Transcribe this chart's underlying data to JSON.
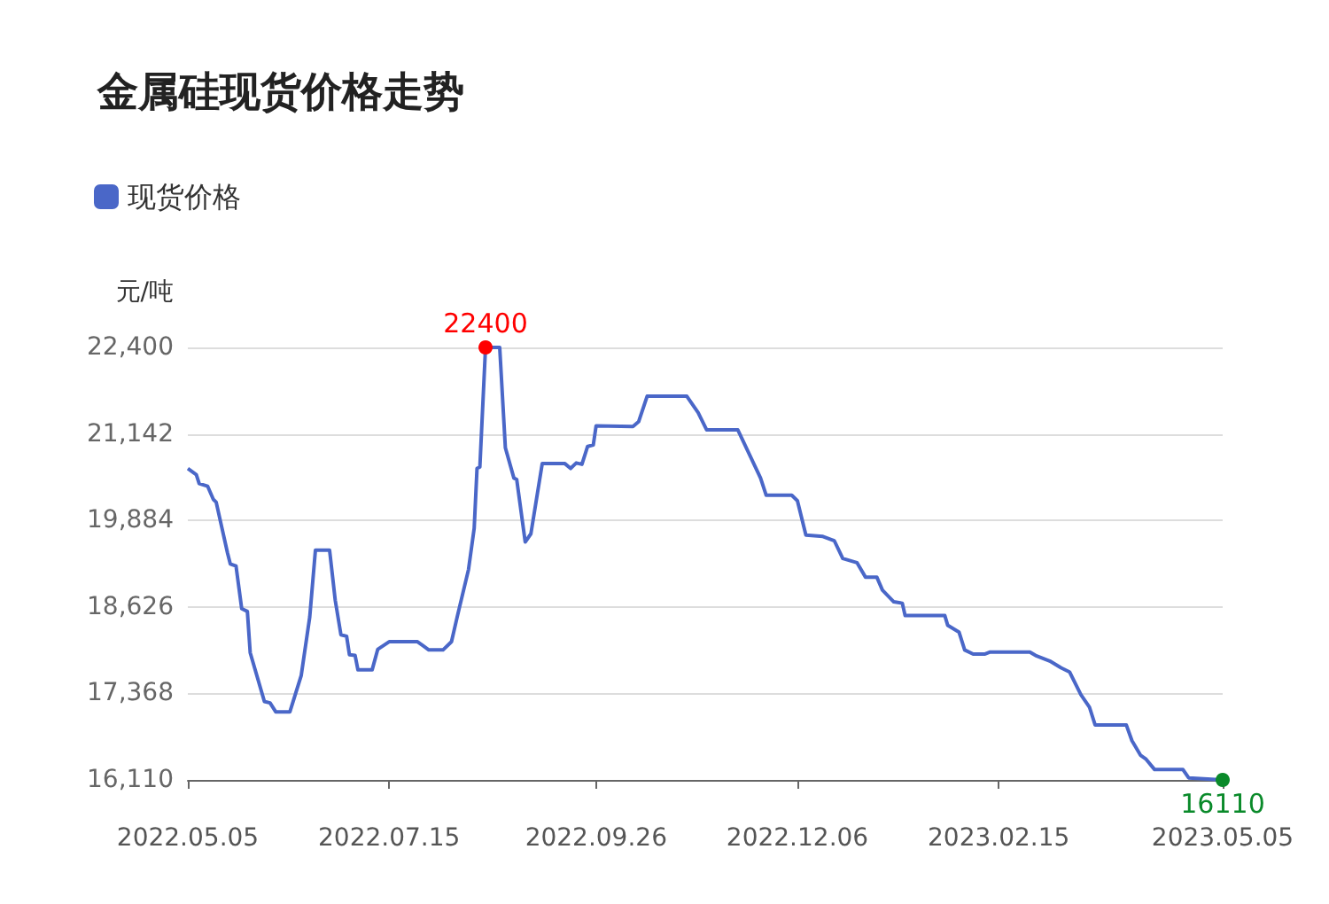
{
  "chart_data": {
    "type": "line",
    "title": "金属硅现货价格走势",
    "ylabel": "元/吨",
    "legend": "top left",
    "grid": "y",
    "marker": "none",
    "line_style": "solid",
    "xlim": [
      "2022-05-05",
      "2023-05-05"
    ],
    "xticks": [
      {
        "value": "2022-05-05",
        "label": "2022.05.05"
      },
      {
        "value": "2022-07-15",
        "label": "2022.07.15"
      },
      {
        "value": "2022-09-26",
        "label": "2022.09.26"
      },
      {
        "value": "2022-12-06",
        "label": "2022.12.06"
      },
      {
        "value": "2023-02-15",
        "label": "2023.02.15"
      },
      {
        "value": "2023-05-05",
        "label": "2023.05.05"
      }
    ],
    "ylim": [
      16110,
      22400
    ],
    "yticks": [
      {
        "value": 16110,
        "label": "16,110"
      },
      {
        "value": 17368,
        "label": "17,368"
      },
      {
        "value": 18626,
        "label": "18,626"
      },
      {
        "value": 19884,
        "label": "19,884"
      },
      {
        "value": 21142,
        "label": "21,142"
      },
      {
        "value": 22400,
        "label": "22,400"
      }
    ],
    "annotations": [
      {
        "text": "22400",
        "x": "2022-08-18",
        "y": 22400
      },
      {
        "text": "16110",
        "x": "2023-05-05",
        "y": 16110
      }
    ],
    "x": [
      "2022-05-05",
      "2022-05-08",
      "2022-05-09",
      "2022-05-12",
      "2022-05-14",
      "2022-05-15",
      "2022-05-19",
      "2022-05-20",
      "2022-05-22",
      "2022-05-24",
      "2022-05-26",
      "2022-05-27",
      "2022-06-01",
      "2022-06-03",
      "2022-06-05",
      "2022-06-10",
      "2022-06-14",
      "2022-06-17",
      "2022-06-19",
      "2022-06-24",
      "2022-06-26",
      "2022-06-28",
      "2022-06-30",
      "2022-07-01",
      "2022-07-03",
      "2022-07-04",
      "2022-07-09",
      "2022-07-11",
      "2022-07-15",
      "2022-07-25",
      "2022-07-27",
      "2022-07-29",
      "2022-08-03",
      "2022-08-06",
      "2022-08-08",
      "2022-08-12",
      "2022-08-14",
      "2022-08-15",
      "2022-08-16",
      "2022-08-18",
      "2022-08-23",
      "2022-08-25",
      "2022-08-28",
      "2022-08-29",
      "2022-09-01",
      "2022-09-03",
      "2022-09-07",
      "2022-09-15",
      "2022-09-17",
      "2022-09-19",
      "2022-09-21",
      "2022-09-23",
      "2022-09-25",
      "2022-09-26",
      "2022-10-09",
      "2022-10-11",
      "2022-10-14",
      "2022-10-28",
      "2022-11-01",
      "2022-11-04",
      "2022-11-15",
      "2022-11-23",
      "2022-11-25",
      "2022-12-04",
      "2022-12-06",
      "2022-12-09",
      "2022-12-15",
      "2022-12-19",
      "2022-12-22",
      "2022-12-27",
      "2022-12-30",
      "2023-01-03",
      "2023-01-05",
      "2023-01-09",
      "2023-01-12",
      "2023-01-13",
      "2023-01-27",
      "2023-01-28",
      "2023-02-01",
      "2023-02-03",
      "2023-02-06",
      "2023-02-10",
      "2023-02-12",
      "2023-02-26",
      "2023-02-28",
      "2023-03-05",
      "2023-03-09",
      "2023-03-12",
      "2023-03-16",
      "2023-03-19",
      "2023-03-21",
      "2023-04-01",
      "2023-04-03",
      "2023-04-06",
      "2023-04-08",
      "2023-04-11",
      "2023-04-21",
      "2023-04-23",
      "2023-05-05"
    ],
    "series": [
      {
        "name": "现货价格",
        "color": "#4a67c8",
        "values": [
          20640,
          20550,
          20420,
          20380,
          20190,
          20150,
          19410,
          19250,
          19220,
          18600,
          18560,
          17960,
          17250,
          17230,
          17100,
          17100,
          17630,
          18480,
          19450,
          19450,
          18720,
          18220,
          18200,
          17930,
          17920,
          17710,
          17710,
          18010,
          18120,
          18120,
          18060,
          18000,
          18000,
          18120,
          18480,
          19170,
          19770,
          20640,
          20660,
          22400,
          22400,
          20940,
          20500,
          20480,
          19570,
          19690,
          20710,
          20710,
          20640,
          20720,
          20700,
          20960,
          20980,
          21260,
          21250,
          21320,
          21690,
          21690,
          21450,
          21200,
          21200,
          20500,
          20250,
          20250,
          20170,
          19670,
          19650,
          19590,
          19330,
          19270,
          19060,
          19060,
          18870,
          18700,
          18680,
          18500,
          18500,
          18360,
          18260,
          18000,
          17940,
          17940,
          17970,
          17970,
          17920,
          17840,
          17740,
          17680,
          17350,
          17170,
          16910,
          16910,
          16680,
          16470,
          16410,
          16260,
          16260,
          16140,
          16110
        ]
      }
    ]
  }
}
